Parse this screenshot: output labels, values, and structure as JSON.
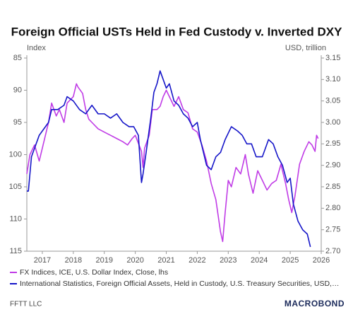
{
  "chart_data": {
    "type": "line",
    "title": "Foreign Official USTs Held in Fed Custody v. Inverted DXY",
    "ylabel": "Index",
    "y2label": "USD, trillion",
    "xlim": [
      2016.5,
      2026.0
    ],
    "xticks": [
      2017,
      2018,
      2019,
      2020,
      2021,
      2022,
      2023,
      2024,
      2025,
      2026
    ],
    "ylim": [
      85,
      115
    ],
    "y_inverted": true,
    "yticks": [
      85,
      90,
      95,
      100,
      105,
      110,
      115
    ],
    "y2lim": [
      2.7,
      3.15
    ],
    "y2ticks": [
      {
        "value": 2.7,
        "label": "2.70"
      },
      {
        "value": 2.75,
        "label": "2.75"
      },
      {
        "value": 2.8,
        "label": "2.80"
      },
      {
        "value": 2.85,
        "label": "2.85"
      },
      {
        "value": 2.9,
        "label": "2.90"
      },
      {
        "value": 2.95,
        "label": "2.95"
      },
      {
        "value": 3.0,
        "label": "3.00"
      },
      {
        "value": 3.05,
        "label": "3.05"
      },
      {
        "value": 3.1,
        "label": "3.10"
      },
      {
        "value": 3.15,
        "label": "3.15"
      }
    ],
    "grid": false,
    "series": [
      {
        "name": "FX Indices, ICE, U.S. Dollar Index, Close, lhs",
        "color": "#c03ce6",
        "axis": "y",
        "x": [
          2016.5,
          2016.6,
          2016.75,
          2016.9,
          2017.0,
          2017.1,
          2017.2,
          2017.3,
          2017.45,
          2017.55,
          2017.7,
          2017.8,
          2018.0,
          2018.1,
          2018.15,
          2018.3,
          2018.4,
          2018.5,
          2018.6,
          2018.8,
          2019.0,
          2019.2,
          2019.4,
          2019.6,
          2019.75,
          2019.9,
          2020.0,
          2020.2,
          2020.25,
          2020.3,
          2020.45,
          2020.55,
          2020.7,
          2020.8,
          2020.9,
          2021.0,
          2021.1,
          2021.25,
          2021.4,
          2021.55,
          2021.7,
          2021.85,
          2022.0,
          2022.15,
          2022.3,
          2022.45,
          2022.6,
          2022.75,
          2022.82,
          2022.9,
          2023.0,
          2023.1,
          2023.25,
          2023.4,
          2023.55,
          2023.65,
          2023.8,
          2023.95,
          2024.1,
          2024.25,
          2024.4,
          2024.55,
          2024.7,
          2024.85,
          2024.95,
          2025.05,
          2025.15,
          2025.3,
          2025.45,
          2025.6,
          2025.7,
          2025.8,
          2025.85,
          2025.9
        ],
        "values": [
          103,
          100,
          98.5,
          101,
          99,
          97,
          95,
          92,
          94,
          93,
          95,
          92,
          91,
          89,
          89.5,
          90.5,
          93,
          94.5,
          95,
          96,
          96.5,
          97,
          97.5,
          98,
          98.5,
          97.5,
          97,
          99.5,
          102,
          99,
          97,
          93,
          93,
          92.5,
          91,
          90,
          91,
          92.5,
          91,
          93,
          93.5,
          96,
          96.5,
          98.5,
          101,
          104.5,
          107,
          112,
          113.5,
          109,
          104,
          105,
          102,
          103,
          100,
          103,
          106,
          102.5,
          104,
          105.5,
          104.5,
          104,
          101.5,
          104.5,
          107,
          109,
          106.5,
          101.5,
          99.5,
          98,
          98.5,
          99.5,
          97,
          97.5
        ]
      },
      {
        "name": "International Statistics, Foreign Official Assets, Held in Custody, U.S. Treasury Securities, USD,…",
        "color": "#1515c8",
        "axis": "y2",
        "x": [
          2016.5,
          2016.55,
          2016.65,
          2016.8,
          2016.9,
          2017.0,
          2017.2,
          2017.3,
          2017.5,
          2017.7,
          2017.8,
          2018.0,
          2018.2,
          2018.4,
          2018.6,
          2018.8,
          2019.0,
          2019.2,
          2019.4,
          2019.6,
          2019.8,
          2019.95,
          2020.1,
          2020.2,
          2020.25,
          2020.35,
          2020.5,
          2020.6,
          2020.7,
          2020.8,
          2020.9,
          2021.0,
          2021.1,
          2021.25,
          2021.4,
          2021.55,
          2021.7,
          2021.85,
          2022.0,
          2022.1,
          2022.3,
          2022.45,
          2022.6,
          2022.75,
          2022.9,
          2023.1,
          2023.3,
          2023.45,
          2023.6,
          2023.75,
          2023.9,
          2024.1,
          2024.3,
          2024.45,
          2024.6,
          2024.75,
          2024.9,
          2025.0,
          2025.1,
          2025.25,
          2025.4,
          2025.55,
          2025.65
        ],
        "values": [
          2.84,
          2.84,
          2.92,
          2.95,
          2.97,
          2.98,
          3.0,
          3.03,
          3.03,
          3.04,
          3.06,
          3.05,
          3.03,
          3.02,
          3.04,
          3.02,
          3.02,
          3.01,
          3.02,
          3.0,
          2.99,
          2.99,
          2.97,
          2.86,
          2.88,
          2.93,
          3.01,
          3.07,
          3.09,
          3.12,
          3.1,
          3.08,
          3.09,
          3.05,
          3.04,
          3.02,
          3.01,
          2.99,
          3.0,
          2.96,
          2.9,
          2.89,
          2.92,
          2.93,
          2.96,
          2.99,
          2.98,
          2.97,
          2.95,
          2.95,
          2.92,
          2.92,
          2.96,
          2.95,
          2.92,
          2.9,
          2.86,
          2.87,
          2.81,
          2.77,
          2.75,
          2.74,
          2.71
        ]
      }
    ],
    "source": "FFTT LLC",
    "logo": "MACROBOND"
  }
}
